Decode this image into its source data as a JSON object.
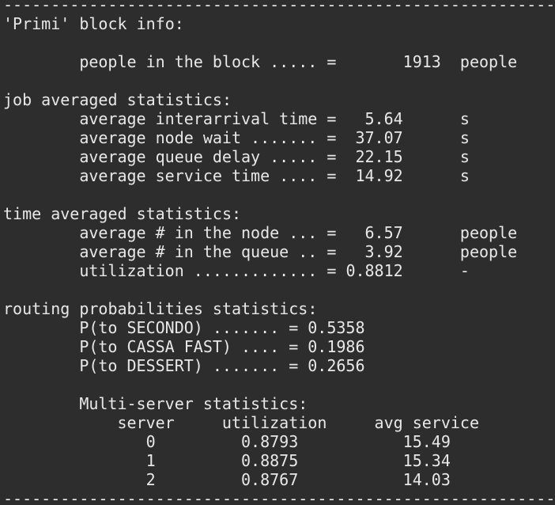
{
  "separator": "-----------------------------------------------------------",
  "block_title": "'Primi' block info:",
  "block_info": {
    "label": "people in the block ..... =",
    "value": 1913,
    "unit": "people"
  },
  "job_stats": {
    "title": "job averaged statistics:",
    "rows": [
      {
        "label": "average interarrival time =",
        "value": 5.64,
        "unit": "s"
      },
      {
        "label": "average node wait ....... =",
        "value": 37.07,
        "unit": "s"
      },
      {
        "label": "average queue delay ..... =",
        "value": 22.15,
        "unit": "s"
      },
      {
        "label": "average service time .... =",
        "value": 14.92,
        "unit": "s"
      }
    ]
  },
  "time_stats": {
    "title": "time averaged statistics:",
    "rows": [
      {
        "label": "average # in the node ... =",
        "value": 6.57,
        "unit": "people"
      },
      {
        "label": "average # in the queue .. =",
        "value": 3.92,
        "unit": "people"
      },
      {
        "label": "utilization ............. =",
        "value": 0.8812,
        "unit": "-"
      }
    ]
  },
  "routing": {
    "title": "routing probabilities statistics:",
    "rows": [
      {
        "label": "P(to SECONDO) ....... =",
        "value": 0.5358
      },
      {
        "label": "P(to CASSA FAST) .... =",
        "value": 0.1986
      },
      {
        "label": "P(to DESSERT) ....... =",
        "value": 0.2656
      }
    ]
  },
  "multi_server": {
    "title": "Multi-server statistics:",
    "header": [
      "server",
      "utilization",
      "avg service"
    ],
    "rows": [
      [
        0,
        0.8793,
        15.49
      ],
      [
        1,
        0.8875,
        15.34
      ],
      [
        2,
        0.8767,
        14.03
      ]
    ]
  }
}
